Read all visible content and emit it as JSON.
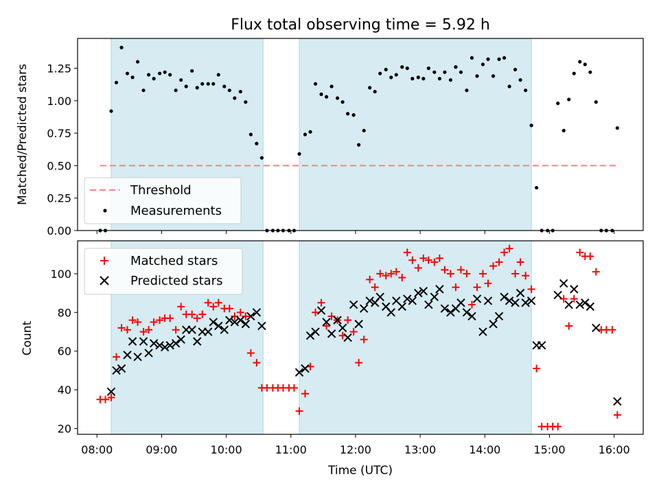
{
  "chart_data": [
    {
      "type": "scatter",
      "title": "Flux total observing time = 5.92 h",
      "xlabel": "",
      "ylabel": "Matched/Predicted stars",
      "ylim": [
        0,
        1.48
      ],
      "yticks": [
        "0.00",
        "0.25",
        "0.50",
        "0.75",
        "1.00",
        "1.25"
      ],
      "ytick_values": [
        0,
        0.25,
        0.5,
        0.75,
        1.0,
        1.25
      ],
      "xlim_hours": [
        7.7,
        16.45
      ],
      "xtick_values": [
        8,
        9,
        10,
        11,
        12,
        13,
        14,
        15,
        16
      ],
      "xticks": [
        "08:00",
        "09:00",
        "10:00",
        "11:00",
        "12:00",
        "13:00",
        "14:00",
        "15:00",
        "16:00"
      ],
      "bands_hours": [
        [
          8.22,
          10.57
        ],
        [
          11.13,
          14.72
        ]
      ],
      "threshold": {
        "label": "Threshold",
        "value": 0.5,
        "x_range_hours": [
          8.05,
          16.07
        ]
      },
      "series": [
        {
          "name": "Measurements",
          "x_hours": [
            8.05,
            8.13,
            8.22,
            8.3,
            8.38,
            8.47,
            8.55,
            8.63,
            8.72,
            8.8,
            8.88,
            8.97,
            9.05,
            9.13,
            9.22,
            9.3,
            9.38,
            9.47,
            9.55,
            9.63,
            9.72,
            9.8,
            9.88,
            9.97,
            10.05,
            10.13,
            10.22,
            10.3,
            10.38,
            10.47,
            10.55,
            10.63,
            10.72,
            10.8,
            10.88,
            10.97,
            11.05,
            11.13,
            11.22,
            11.3,
            11.38,
            11.47,
            11.55,
            11.63,
            11.72,
            11.8,
            11.88,
            11.97,
            12.05,
            12.13,
            12.22,
            12.3,
            12.38,
            12.47,
            12.55,
            12.63,
            12.72,
            12.8,
            12.88,
            12.97,
            13.05,
            13.13,
            13.22,
            13.3,
            13.38,
            13.47,
            13.55,
            13.63,
            13.72,
            13.8,
            13.88,
            13.97,
            14.05,
            14.13,
            14.22,
            14.3,
            14.38,
            14.47,
            14.55,
            14.63,
            14.72,
            14.8,
            14.88,
            14.97,
            15.05,
            15.13,
            15.22,
            15.3,
            15.38,
            15.47,
            15.55,
            15.63,
            15.72,
            15.8,
            15.88,
            15.97,
            16.05
          ],
          "y": [
            0,
            0,
            0.92,
            1.14,
            1.41,
            1.21,
            1.18,
            1.3,
            1.08,
            1.2,
            1.17,
            1.21,
            1.22,
            1.2,
            1.08,
            1.16,
            1.11,
            1.23,
            1.1,
            1.13,
            1.13,
            1.13,
            1.2,
            1.11,
            1.08,
            1.02,
            1.07,
            0.99,
            0.74,
            0.67,
            0.56,
            0,
            0,
            0,
            0,
            0,
            0,
            0.59,
            0.74,
            0.76,
            1.13,
            1.05,
            1.03,
            1.11,
            1.02,
            0.99,
            0.9,
            0.89,
            0.66,
            0.77,
            1.1,
            1.07,
            1.21,
            1.24,
            1.18,
            1.2,
            1.26,
            1.25,
            1.17,
            1.18,
            1.17,
            1.25,
            1.22,
            1.17,
            1.22,
            1.16,
            1.26,
            1.22,
            1.08,
            1.33,
            1.19,
            1.28,
            1.32,
            1.19,
            1.32,
            1.33,
            1.11,
            1.24,
            1.16,
            1.08,
            0.81,
            0.33,
            0,
            0,
            0,
            0.98,
            0.77,
            1.01,
            1.21,
            1.3,
            1.28,
            1.22,
            0.99,
            0,
            0,
            0,
            0.79
          ]
        }
      ]
    },
    {
      "type": "scatter",
      "title": "",
      "xlabel": "Time (UTC)",
      "ylabel": "Count",
      "ylim": [
        17,
        117
      ],
      "yticks": [
        "20",
        "40",
        "60",
        "80",
        "100"
      ],
      "ytick_values": [
        20,
        40,
        60,
        80,
        100
      ],
      "xlim_hours": [
        7.7,
        16.45
      ],
      "xtick_values": [
        8,
        9,
        10,
        11,
        12,
        13,
        14,
        15,
        16
      ],
      "xticks": [
        "08:00",
        "09:00",
        "10:00",
        "11:00",
        "12:00",
        "13:00",
        "14:00",
        "15:00",
        "16:00"
      ],
      "bands_hours": [
        [
          8.22,
          10.57
        ],
        [
          11.13,
          14.72
        ]
      ],
      "series": [
        {
          "name": "Matched stars",
          "color": "#ff0000",
          "marker": "plus",
          "x_hours": [
            8.05,
            8.13,
            8.22,
            8.3,
            8.38,
            8.47,
            8.55,
            8.63,
            8.72,
            8.8,
            8.88,
            8.97,
            9.05,
            9.13,
            9.22,
            9.3,
            9.38,
            9.47,
            9.55,
            9.63,
            9.72,
            9.8,
            9.88,
            9.97,
            10.05,
            10.13,
            10.22,
            10.3,
            10.38,
            10.47,
            10.55,
            10.63,
            10.72,
            10.8,
            10.88,
            10.97,
            11.05,
            11.13,
            11.22,
            11.3,
            11.38,
            11.47,
            11.55,
            11.63,
            11.72,
            11.8,
            11.88,
            11.97,
            12.05,
            12.13,
            12.22,
            12.3,
            12.38,
            12.47,
            12.55,
            12.63,
            12.72,
            12.8,
            12.88,
            12.97,
            13.05,
            13.13,
            13.22,
            13.3,
            13.38,
            13.47,
            13.55,
            13.63,
            13.72,
            13.8,
            13.88,
            13.97,
            14.05,
            14.13,
            14.22,
            14.3,
            14.38,
            14.47,
            14.55,
            14.63,
            14.72,
            14.8,
            14.88,
            14.97,
            15.05,
            15.13,
            15.22,
            15.3,
            15.38,
            15.47,
            15.55,
            15.63,
            15.72,
            15.8,
            15.88,
            15.97,
            16.05
          ],
          "y": [
            35,
            35,
            36,
            57,
            72,
            71,
            76,
            75,
            70,
            71,
            75,
            76,
            77,
            77,
            71,
            83,
            79,
            79,
            77,
            79,
            85,
            83,
            85,
            82,
            82,
            78,
            80,
            78,
            59,
            54,
            41,
            41,
            41,
            41,
            41,
            41,
            41,
            29,
            38,
            52,
            80,
            85,
            73,
            78,
            76,
            68,
            76,
            70,
            54,
            66,
            97,
            93,
            100,
            99,
            100,
            101,
            98,
            111,
            107,
            103,
            108,
            107,
            106,
            108,
            102,
            100,
            93,
            102,
            100,
            84,
            93,
            100,
            95,
            104,
            106,
            111,
            113,
            100,
            106,
            99,
            92,
            51,
            21,
            21,
            21,
            21,
            87,
            73,
            87,
            111,
            109,
            109,
            101,
            71,
            71,
            71,
            27
          ]
        },
        {
          "name": "Predicted stars",
          "color": "#000000",
          "marker": "x",
          "x_hours": [
            8.22,
            8.3,
            8.38,
            8.47,
            8.55,
            8.63,
            8.72,
            8.8,
            8.88,
            8.97,
            9.05,
            9.13,
            9.22,
            9.3,
            9.38,
            9.47,
            9.55,
            9.63,
            9.72,
            9.8,
            9.88,
            9.97,
            10.05,
            10.13,
            10.22,
            10.3,
            10.38,
            10.47,
            10.55,
            11.13,
            11.22,
            11.3,
            11.38,
            11.47,
            11.55,
            11.63,
            11.72,
            11.8,
            11.88,
            11.97,
            12.05,
            12.13,
            12.22,
            12.3,
            12.38,
            12.47,
            12.55,
            12.63,
            12.72,
            12.8,
            12.88,
            12.97,
            13.05,
            13.13,
            13.22,
            13.3,
            13.38,
            13.47,
            13.55,
            13.63,
            13.72,
            13.8,
            13.88,
            13.97,
            14.05,
            14.13,
            14.22,
            14.3,
            14.38,
            14.47,
            14.55,
            14.63,
            14.72,
            14.8,
            14.88,
            15.13,
            15.22,
            15.3,
            15.38,
            15.47,
            15.55,
            15.63,
            15.72,
            16.05
          ],
          "y": [
            39,
            50,
            51,
            58,
            65,
            57,
            65,
            59,
            64,
            63,
            62,
            63,
            64,
            66,
            71,
            71,
            65,
            70,
            70,
            75,
            73,
            71,
            76,
            75,
            76,
            74,
            78,
            80,
            73,
            49,
            51,
            68,
            70,
            81,
            75,
            69,
            76,
            72,
            67,
            84,
            74,
            82,
            86,
            85,
            88,
            83,
            80,
            86,
            83,
            87,
            86,
            90,
            91,
            84,
            88,
            92,
            82,
            80,
            82,
            85,
            80,
            78,
            87,
            70,
            86,
            74,
            78,
            88,
            86,
            85,
            90,
            85,
            86,
            63,
            63,
            89,
            95,
            84,
            92,
            84,
            85,
            83,
            72,
            34
          ]
        }
      ]
    }
  ],
  "legend_top": {
    "threshold": "Threshold",
    "measurements": "Measurements"
  },
  "legend_bottom": {
    "matched": "Matched stars",
    "predicted": "Predicted stars"
  }
}
